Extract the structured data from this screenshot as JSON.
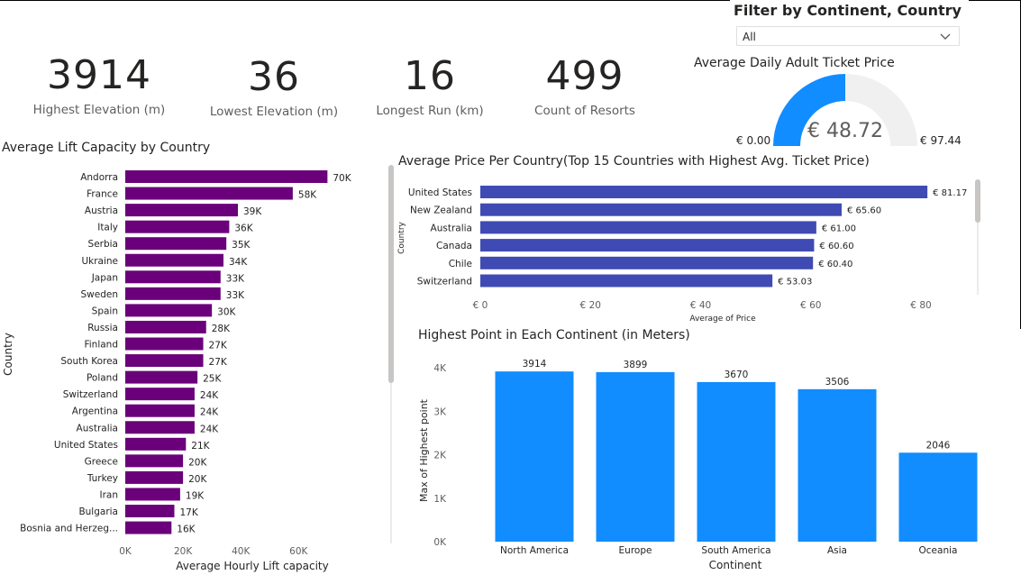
{
  "slicer": {
    "title": "Filter by Continent, Country",
    "selected": "All"
  },
  "kpis": [
    {
      "value": "3914",
      "label": "Highest Elevation (m)"
    },
    {
      "value": "36",
      "label": "Lowest Elevation (m)"
    },
    {
      "value": "16",
      "label": "Longest Run (km)"
    },
    {
      "value": "499",
      "label": "Count of Resorts"
    }
  ],
  "gauge": {
    "title": "Average Daily Adult Ticket Price",
    "value_label": "€ 48.72",
    "min_label": "€ 0.00",
    "max_label": "€ 97.44",
    "value": 48.72,
    "min": 0,
    "max": 97.44,
    "fill_color": "#118DFF",
    "track_color": "#F0F0F0"
  },
  "chart_data": [
    {
      "type": "bar",
      "orientation": "horizontal",
      "title": "Average Lift Capacity by Country",
      "xlabel": "Average Hourly Lift capacity",
      "ylabel": "Country",
      "color": "#6B007B",
      "categories": [
        "Andorra",
        "France",
        "Austria",
        "Italy",
        "Serbia",
        "Ukraine",
        "Japan",
        "Sweden",
        "Spain",
        "Russia",
        "Finland",
        "South Korea",
        "Poland",
        "Switzerland",
        "Argentina",
        "Australia",
        "United States",
        "Greece",
        "Turkey",
        "Iran",
        "Bulgaria",
        "Bosnia and Herzeg..."
      ],
      "values": [
        70000,
        58000,
        39000,
        36000,
        35000,
        34000,
        33000,
        33000,
        30000,
        28000,
        27000,
        27000,
        25000,
        24000,
        24000,
        24000,
        21000,
        20000,
        20000,
        19000,
        17000,
        16000
      ],
      "value_labels": [
        "70K",
        "58K",
        "39K",
        "36K",
        "35K",
        "34K",
        "33K",
        "33K",
        "30K",
        "28K",
        "27K",
        "27K",
        "25K",
        "24K",
        "24K",
        "24K",
        "21K",
        "20K",
        "20K",
        "19K",
        "17K",
        "16K"
      ],
      "xticks": [
        "0K",
        "20K",
        "40K",
        "60K"
      ],
      "xtick_values": [
        0,
        20000,
        40000,
        60000
      ],
      "xlim": [
        0,
        78000
      ]
    },
    {
      "type": "bar",
      "orientation": "horizontal",
      "title": "Average Price Per Country(Top 15 Countries with Highest Avg. Ticket Price)",
      "xlabel": "Average of Price",
      "ylabel": "Country",
      "color": "#3F4BB3",
      "categories": [
        "United States",
        "New Zealand",
        "Australia",
        "Canada",
        "Chile",
        "Switzerland"
      ],
      "values": [
        81.17,
        65.6,
        61.0,
        60.6,
        60.4,
        53.03
      ],
      "value_labels": [
        "€ 81.17",
        "€ 65.60",
        "€ 61.00",
        "€ 60.60",
        "€ 60.40",
        "€ 53.03"
      ],
      "xticks": [
        "€ 0",
        "€ 20",
        "€ 40",
        "€ 60",
        "€ 80"
      ],
      "xtick_values": [
        0,
        20,
        40,
        60,
        80
      ],
      "xlim": [
        0,
        81.17
      ]
    },
    {
      "type": "bar",
      "orientation": "vertical",
      "title": "Highest Point in Each Continent (in Meters)",
      "xlabel": "Continent",
      "ylabel": "Max of Highest point",
      "color": "#118DFF",
      "categories": [
        "North America",
        "Europe",
        "South America",
        "Asia",
        "Oceania"
      ],
      "values": [
        3914,
        3899,
        3670,
        3506,
        2046
      ],
      "value_labels": [
        "3914",
        "3899",
        "3670",
        "3506",
        "2046"
      ],
      "yticks": [
        "0K",
        "1K",
        "2K",
        "3K",
        "4K"
      ],
      "ytick_values": [
        0,
        1000,
        2000,
        3000,
        4000
      ],
      "ylim": [
        0,
        4000
      ]
    }
  ]
}
